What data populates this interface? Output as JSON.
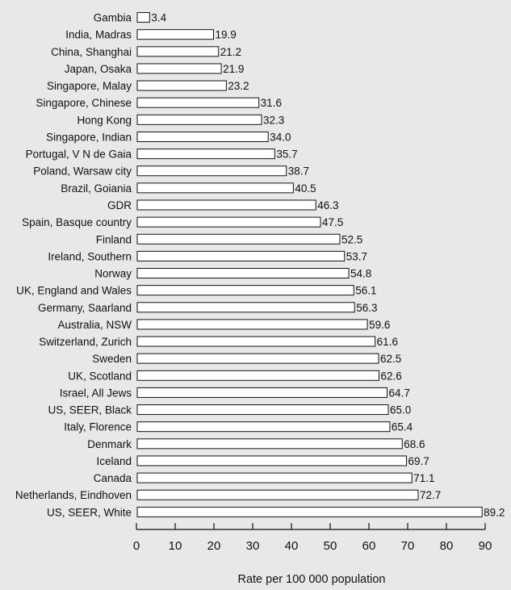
{
  "chart_data": {
    "type": "bar",
    "orientation": "horizontal",
    "categories": [
      "Gambia",
      "India, Madras",
      "China, Shanghai",
      "Japan, Osaka",
      "Singapore, Malay",
      "Singapore, Chinese",
      "Hong Kong",
      "Singapore, Indian",
      "Portugal, V N de Gaia",
      "Poland, Warsaw city",
      "Brazil, Goiania",
      "GDR",
      "Spain, Basque country",
      "Finland",
      "Ireland, Southern",
      "Norway",
      "UK, England and Wales",
      "Germany, Saarland",
      "Australia, NSW",
      "Switzerland, Zurich",
      "Sweden",
      "UK, Scotland",
      "Israel, All Jews",
      "US, SEER, Black",
      "Italy, Florence",
      "Denmark",
      "Iceland",
      "Canada",
      "Netherlands, Eindhoven",
      "US, SEER, White"
    ],
    "values": [
      3.4,
      19.9,
      21.2,
      21.9,
      23.2,
      31.6,
      32.3,
      34.0,
      35.7,
      38.7,
      40.5,
      46.3,
      47.5,
      52.5,
      53.7,
      54.8,
      56.1,
      56.3,
      59.6,
      61.6,
      62.5,
      62.6,
      64.7,
      65.0,
      65.4,
      68.6,
      69.7,
      71.1,
      72.7,
      89.2
    ],
    "value_labels": [
      "3.4",
      "19.9",
      "21.2",
      "21.9",
      "23.2",
      "31.6",
      "32.3",
      "34.0",
      "35.7",
      "38.7",
      "40.5",
      "46.3",
      "47.5",
      "52.5",
      "53.7",
      "54.8",
      "56.1",
      "56.3",
      "59.6",
      "61.6",
      "62.5",
      "62.6",
      "64.7",
      "65.0",
      "65.4",
      "68.6",
      "69.7",
      "71.1",
      "72.7",
      "89.2"
    ],
    "xlabel": "Rate per 100 000 population",
    "ylabel": "",
    "title": "",
    "xlim": [
      0,
      90
    ],
    "xticks": [
      0,
      10,
      20,
      30,
      40,
      50,
      60,
      70,
      80,
      90
    ],
    "grid": false,
    "colors": {
      "bar_fill": "#ffffff",
      "bar_stroke": "#111111",
      "background": "#e8e8e8"
    }
  }
}
